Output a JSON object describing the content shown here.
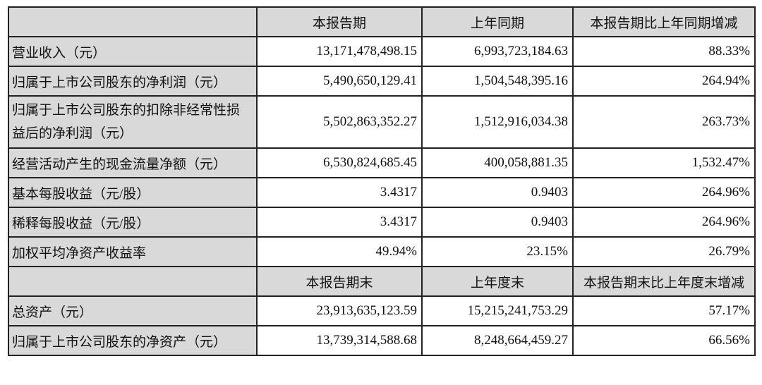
{
  "header1": [
    "",
    "本报告期",
    "上年同期",
    "本报告期比上年同期增减"
  ],
  "rows1": [
    {
      "label": "营业收入（元）",
      "values": [
        "13,171,478,498.15",
        "6,993,723,184.63",
        "88.33%"
      ]
    },
    {
      "label": "归属于上市公司股东的净利润（元）",
      "values": [
        "5,490,650,129.41",
        "1,504,548,395.16",
        "264.94%"
      ]
    },
    {
      "label": "归属于上市公司股东的扣除非经常性损益后的净利润（元）",
      "values": [
        "5,502,863,352.27",
        "1,512,916,034.38",
        "263.73%"
      ]
    },
    {
      "label": "经营活动产生的现金流量净额（元）",
      "values": [
        "6,530,824,685.45",
        "400,058,881.35",
        "1,532.47%"
      ]
    },
    {
      "label": "基本每股收益（元/股）",
      "values": [
        "3.4317",
        "0.9403",
        "264.96%"
      ]
    },
    {
      "label": "稀释每股收益（元/股）",
      "values": [
        "3.4317",
        "0.9403",
        "264.96%"
      ]
    },
    {
      "label": "加权平均净资产收益率",
      "values": [
        "49.94%",
        "23.15%",
        "26.79%"
      ]
    }
  ],
  "header2": [
    "",
    "本报告期末",
    "上年度末",
    "本报告期末比上年度末增减"
  ],
  "rows2": [
    {
      "label": "总资产（元）",
      "values": [
        "23,913,635,123.59",
        "15,215,241,753.29",
        "57.17%"
      ]
    },
    {
      "label": "归属于上市公司股东的净资产（元）",
      "values": [
        "13,739,314,588.68",
        "8,248,664,459.27",
        "66.56%"
      ]
    }
  ]
}
